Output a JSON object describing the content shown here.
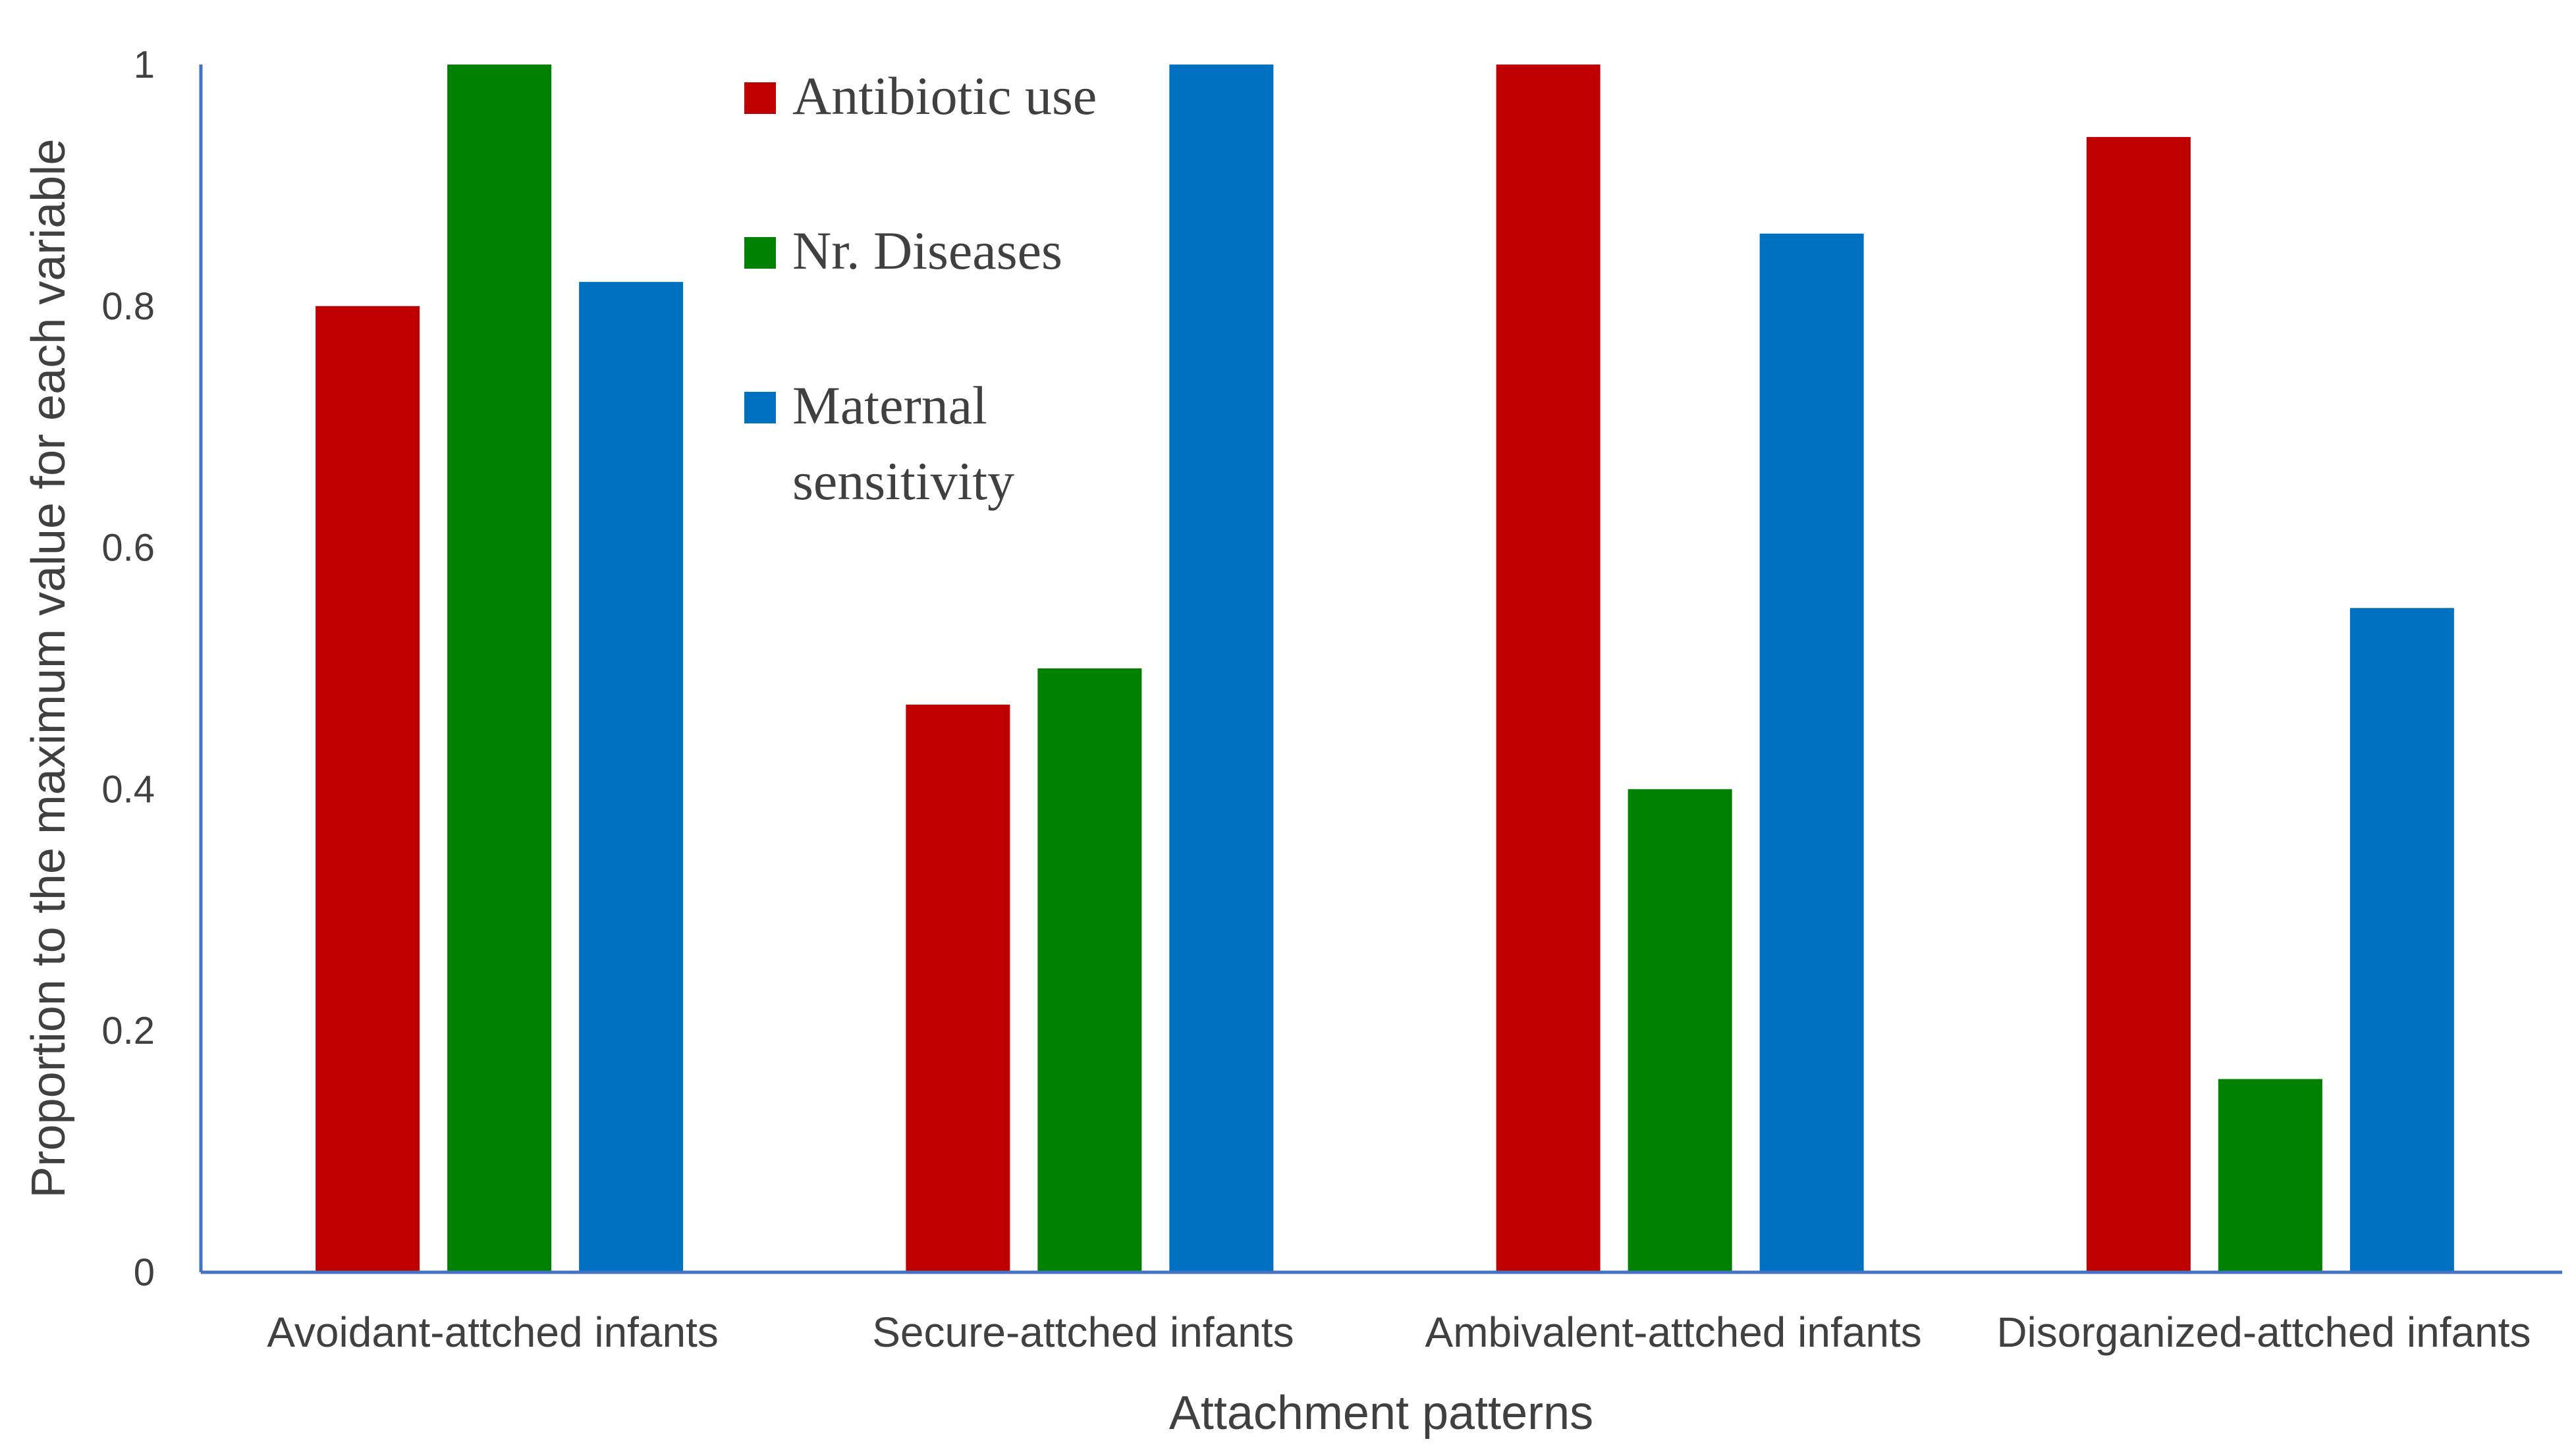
{
  "chart_data": {
    "type": "bar",
    "title": "",
    "xlabel": "Attachment patterns",
    "ylabel": "Proportion to the maximum value for each variable",
    "ylim": [
      0,
      1
    ],
    "yticks": [
      "0",
      "0.2",
      "0.4",
      "0.6",
      "0.8",
      "1"
    ],
    "ytick_values": [
      0,
      0.2,
      0.4,
      0.6,
      0.8,
      1
    ],
    "categories": [
      "Avoidant-attched infants",
      "Secure-attched infants",
      "Ambivalent-attched infants",
      "Disorganized-attched infants"
    ],
    "series": [
      {
        "name": "Antibiotic use",
        "color": "#C00000",
        "values": [
          0.8,
          0.47,
          1.0,
          0.94
        ]
      },
      {
        "name": "Nr. Diseases",
        "color": "#008000",
        "values": [
          1.0,
          0.5,
          0.4,
          0.16
        ]
      },
      {
        "name": "Maternal sensitivity",
        "color": "#0070C0",
        "values": [
          0.82,
          1.0,
          0.86,
          0.55
        ]
      }
    ],
    "legend": {
      "placement": "top-center",
      "entries": [
        {
          "lines": [
            "Antibiotic use"
          ]
        },
        {
          "lines": [
            "Nr. Diseases"
          ]
        },
        {
          "lines": [
            "Maternal",
            "sensitivity"
          ]
        }
      ]
    },
    "grid": false,
    "axis_color": "#4472C4"
  }
}
